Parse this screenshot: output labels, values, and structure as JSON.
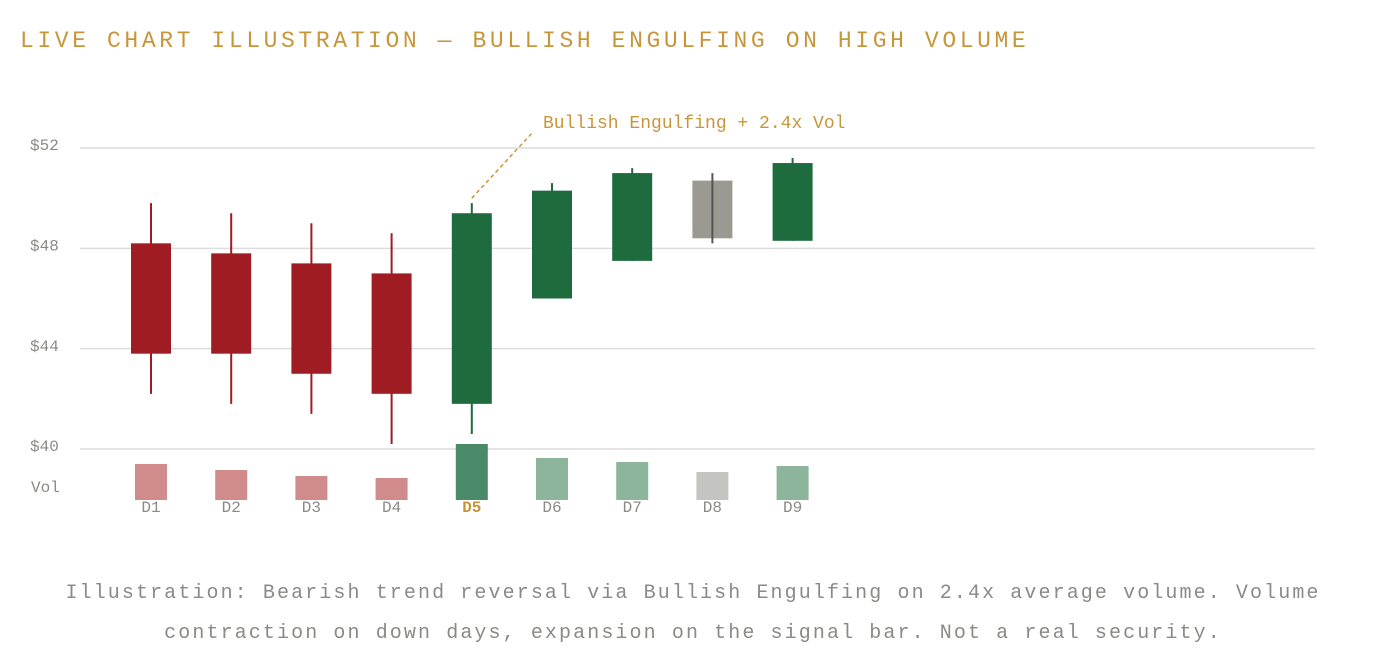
{
  "chart_data": {
    "type": "candlestick",
    "title": "LIVE CHART ILLUSTRATION — BULLISH ENGULFING ON HIGH VOLUME",
    "categories": [
      "D1",
      "D2",
      "D3",
      "D4",
      "D5",
      "D6",
      "D7",
      "D8",
      "D9"
    ],
    "open": [
      48.2,
      47.8,
      47.4,
      47.0,
      41.8,
      46.0,
      47.5,
      48.4,
      48.3
    ],
    "high": [
      49.8,
      49.4,
      49.0,
      48.6,
      49.8,
      50.6,
      51.2,
      51.0,
      51.6
    ],
    "low": [
      42.2,
      41.8,
      41.4,
      40.2,
      40.6,
      46.0,
      47.5,
      48.2,
      48.3
    ],
    "close": [
      43.8,
      43.8,
      43.0,
      42.2,
      49.4,
      50.3,
      51.0,
      50.7,
      51.4
    ],
    "colors": [
      "#9e1c22",
      "#9e1c22",
      "#9e1c22",
      "#9e1c22",
      "#1e6b3e",
      "#1e6b3e",
      "#1e6b3e",
      "#9a9a92",
      "#1e6b3e"
    ],
    "volume_label": "Vol",
    "volume": [
      36,
      30,
      24,
      22,
      56,
      42,
      38,
      28,
      34
    ],
    "volume_colors": [
      "#d28b8b",
      "#d28b8b",
      "#d28b8b",
      "#d28b8b",
      "#4a8a68",
      "#8db59b",
      "#8db59b",
      "#c4c4c0",
      "#8db59b"
    ],
    "volume_lim": [
      0,
      56
    ],
    "ylim": [
      40,
      52
    ],
    "yticks": [
      {
        "value": 52,
        "label": "$52"
      },
      {
        "value": 48,
        "label": "$48"
      },
      {
        "value": 44,
        "label": "$44"
      },
      {
        "value": 40,
        "label": "$40"
      }
    ],
    "grid": true,
    "highlight_index": 4,
    "annotation": "Bullish Engulfing + 2.4x Vol",
    "caption": "Illustration: Bearish trend reversal via Bullish Engulfing on 2.4x average volume. Volume contraction on down days, expansion on the signal bar. Not a real security."
  }
}
